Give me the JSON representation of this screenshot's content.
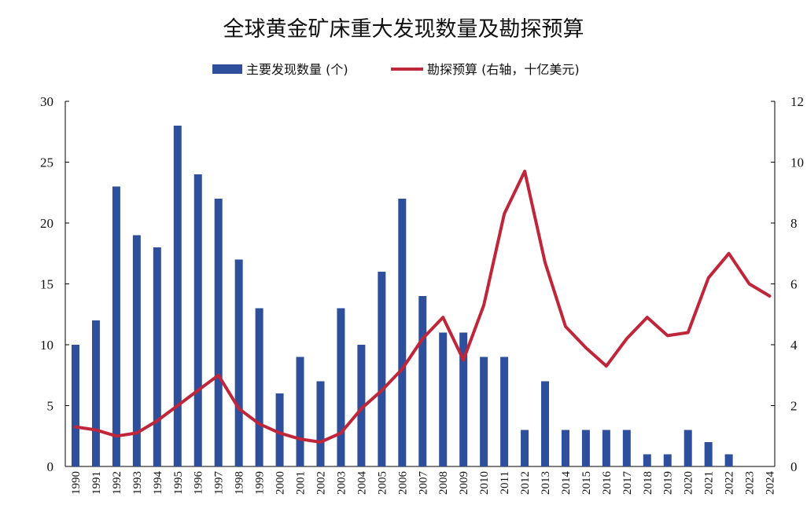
{
  "chart_data": {
    "type": "bar+line",
    "title": "全球黄金矿床重大发现数量及勘探预算",
    "categories": [
      "1990",
      "1991",
      "1992",
      "1993",
      "1994",
      "1995",
      "1996",
      "1997",
      "1998",
      "1999",
      "2000",
      "2001",
      "2002",
      "2003",
      "2004",
      "2005",
      "2006",
      "2007",
      "2008",
      "2009",
      "2010",
      "2011",
      "2012",
      "2013",
      "2014",
      "2015",
      "2016",
      "2017",
      "2018",
      "2019",
      "2020",
      "2021",
      "2022",
      "2023",
      "2024"
    ],
    "series": [
      {
        "name": "主要发现数量 (个)",
        "type": "bar",
        "axis": "left",
        "color": "#2e4f9c",
        "values": [
          10,
          12,
          23,
          19,
          18,
          28,
          24,
          22,
          17,
          13,
          6,
          9,
          7,
          13,
          10,
          16,
          22,
          14,
          11,
          11,
          9,
          9,
          3,
          7,
          3,
          3,
          3,
          3,
          1,
          1,
          3,
          2,
          1,
          0,
          0
        ]
      },
      {
        "name": "勘探预算 (右轴，十亿美元)",
        "type": "line",
        "axis": "right",
        "color": "#c0263a",
        "values": [
          1.3,
          1.2,
          1.0,
          1.1,
          1.5,
          2.0,
          2.5,
          3.0,
          1.9,
          1.4,
          1.1,
          0.9,
          0.8,
          1.1,
          1.9,
          2.5,
          3.2,
          4.2,
          4.9,
          3.5,
          5.3,
          8.3,
          9.7,
          6.7,
          4.6,
          3.9,
          3.3,
          4.2,
          4.9,
          4.3,
          4.4,
          6.2,
          7.0,
          6.0,
          5.6
        ]
      }
    ],
    "y_left": {
      "min": 0,
      "max": 30,
      "ticks": [
        "0",
        "5",
        "10",
        "15",
        "20",
        "25",
        "30"
      ]
    },
    "y_right": {
      "min": 0,
      "max": 12,
      "ticks": [
        "0",
        "2",
        "4",
        "6",
        "8",
        "10",
        "12"
      ]
    },
    "legend": "top-center",
    "grid": false
  }
}
